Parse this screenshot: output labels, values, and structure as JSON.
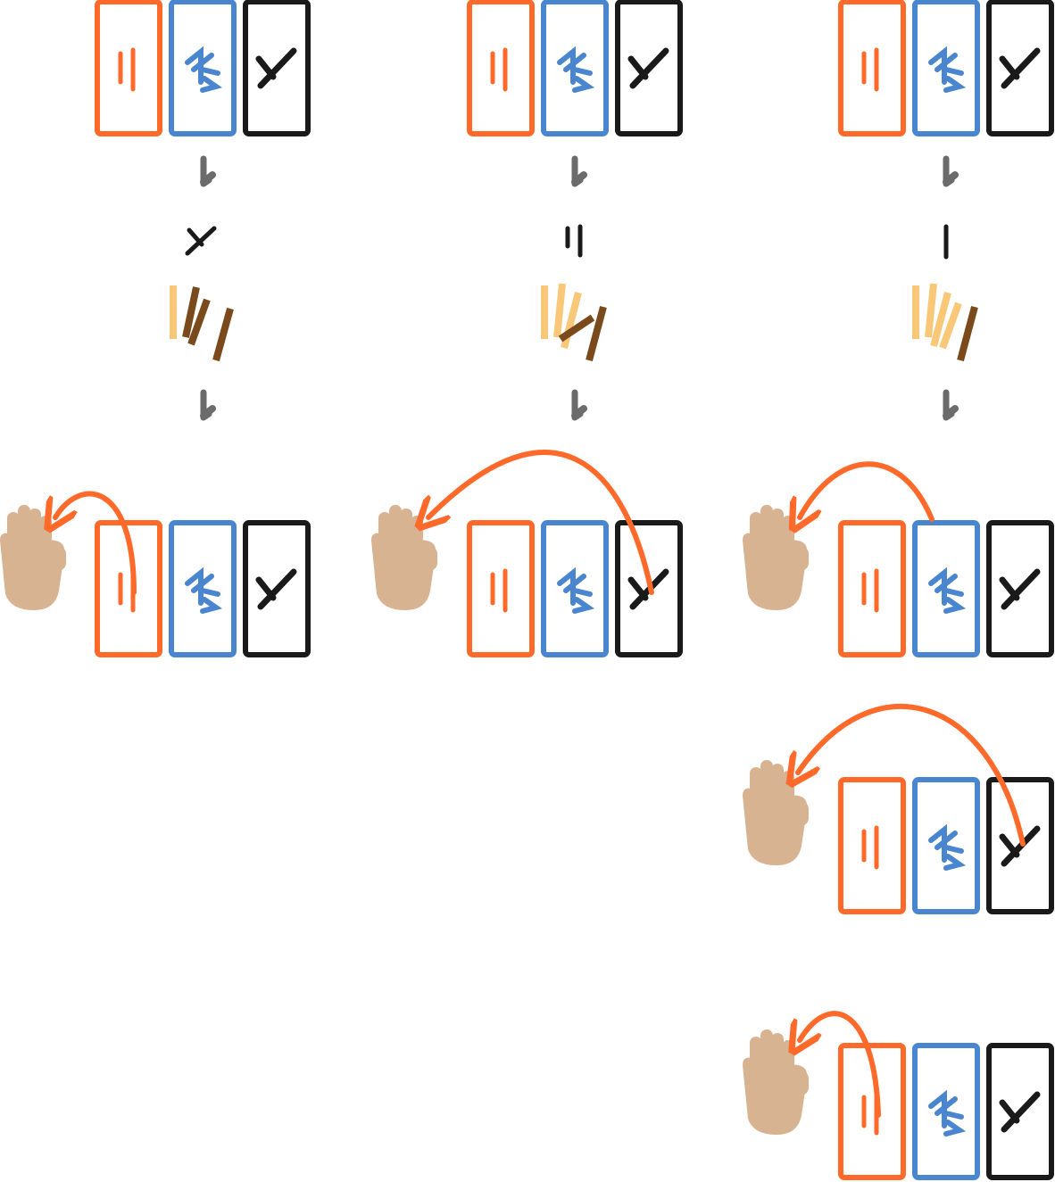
{
  "colors": {
    "orange": "#ff6a2b",
    "blue": "#4a86cf",
    "black": "#1a1a1a",
    "gray_arrow": "#6b6b6b",
    "hand": "#d7b392",
    "stick_light": "#f8c878",
    "stick_dark": "#7a4a1c"
  },
  "cards": [
    {
      "name": "card-two",
      "symbol": "二",
      "color": "orange"
    },
    {
      "name": "card-person",
      "symbol": "人",
      "color": "blue"
    },
    {
      "name": "card-cross",
      "symbol": "X",
      "color": "black"
    }
  ],
  "columns": [
    {
      "id": "left",
      "result_symbol": "×",
      "dark_sticks": 2
    },
    {
      "id": "middle",
      "result_symbol": "||",
      "dark_sticks": 1
    },
    {
      "id": "right",
      "result_symbol": "|",
      "dark_sticks": 1
    }
  ],
  "icons": [
    "down-arrow-icon",
    "hand-icon",
    "curved-arrow-icon",
    "sticks-icon"
  ]
}
